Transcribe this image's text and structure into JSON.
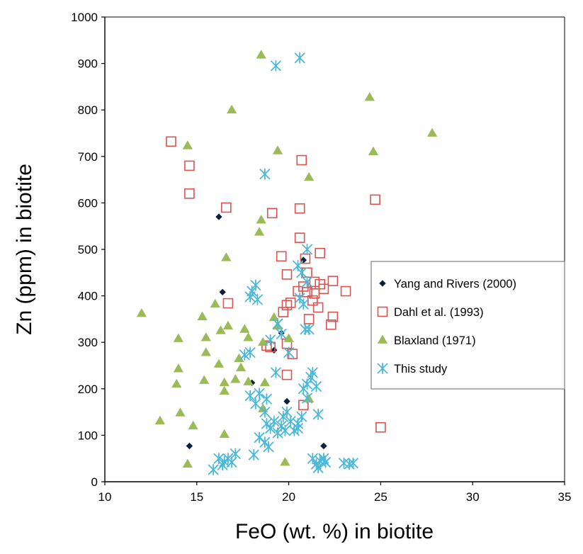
{
  "chart_data": {
    "type": "scatter",
    "title": "",
    "xlabel": "FeO (wt. %) in biotite",
    "ylabel": "Zn (ppm) in biotite",
    "xlim": [
      10,
      35
    ],
    "ylim": [
      0,
      1000
    ],
    "x_ticks": [
      10,
      15,
      20,
      25,
      30,
      35
    ],
    "y_ticks": [
      0,
      100,
      200,
      300,
      400,
      500,
      600,
      700,
      800,
      900,
      1000
    ],
    "grid": false,
    "legend_position": "right",
    "series": [
      {
        "name": "Yang and Rivers (2000)",
        "marker": "diamond",
        "color": "#0b1f3a",
        "points": [
          [
            16.2,
            570
          ],
          [
            16.4,
            408
          ],
          [
            14.6,
            77
          ],
          [
            18.0,
            213
          ],
          [
            19.2,
            283
          ],
          [
            19.6,
            320
          ],
          [
            19.9,
            173
          ],
          [
            20.8,
            477
          ],
          [
            21.9,
            77
          ]
        ]
      },
      {
        "name": "Dahl et al. (1993)",
        "marker": "square-open",
        "color": "#d9534f",
        "points": [
          [
            13.6,
            732
          ],
          [
            14.6,
            680
          ],
          [
            14.6,
            620
          ],
          [
            16.6,
            590
          ],
          [
            16.7,
            384
          ],
          [
            19.1,
            578
          ],
          [
            18.8,
            293
          ],
          [
            19.0,
            290
          ],
          [
            19.7,
            365
          ],
          [
            19.6,
            485
          ],
          [
            19.9,
            446
          ],
          [
            19.9,
            380
          ],
          [
            20.1,
            385
          ],
          [
            19.9,
            297
          ],
          [
            20.2,
            275
          ],
          [
            19.9,
            230
          ],
          [
            20.6,
            588
          ],
          [
            20.6,
            525
          ],
          [
            20.7,
            692
          ],
          [
            20.9,
            480
          ],
          [
            21.0,
            450
          ],
          [
            20.8,
            165
          ],
          [
            20.5,
            410
          ],
          [
            20.8,
            420
          ],
          [
            21.0,
            408
          ],
          [
            21.1,
            350
          ],
          [
            21.4,
            430
          ],
          [
            21.4,
            405
          ],
          [
            21.6,
            375
          ],
          [
            21.7,
            492
          ],
          [
            21.7,
            425
          ],
          [
            21.9,
            415
          ],
          [
            21.3,
            390
          ],
          [
            22.3,
            338
          ],
          [
            22.4,
            355
          ],
          [
            22.4,
            432
          ],
          [
            23.1,
            410
          ],
          [
            24.7,
            607
          ],
          [
            25.0,
            117
          ]
        ]
      },
      {
        "name": "Blaxland (1971)",
        "marker": "triangle",
        "color": "#9bbb59",
        "points": [
          [
            12.0,
            362
          ],
          [
            13.0,
            131
          ],
          [
            13.9,
            210
          ],
          [
            14.0,
            243
          ],
          [
            14.0,
            308
          ],
          [
            14.1,
            148
          ],
          [
            14.5,
            723
          ],
          [
            14.5,
            38
          ],
          [
            14.8,
            120
          ],
          [
            15.3,
            355
          ],
          [
            15.4,
            218
          ],
          [
            15.5,
            310
          ],
          [
            15.5,
            278
          ],
          [
            16.0,
            382
          ],
          [
            16.2,
            253
          ],
          [
            16.3,
            325
          ],
          [
            16.5,
            213
          ],
          [
            16.6,
            482
          ],
          [
            16.7,
            335
          ],
          [
            16.5,
            102
          ],
          [
            16.9,
            800
          ],
          [
            16.5,
            195
          ],
          [
            17.1,
            220
          ],
          [
            17.3,
            265
          ],
          [
            17.4,
            245
          ],
          [
            17.6,
            328
          ],
          [
            17.8,
            310
          ],
          [
            17.8,
            215
          ],
          [
            18.4,
            537
          ],
          [
            18.5,
            563
          ],
          [
            18.5,
            918
          ],
          [
            18.7,
            213
          ],
          [
            18.6,
            300
          ],
          [
            18.6,
            157
          ],
          [
            19.2,
            353
          ],
          [
            19.4,
            712
          ],
          [
            19.4,
            335
          ],
          [
            19.8,
            42
          ],
          [
            20.0,
            308
          ],
          [
            21.1,
            655
          ],
          [
            21.1,
            178
          ],
          [
            24.4,
            827
          ],
          [
            24.6,
            710
          ],
          [
            27.8,
            750
          ]
        ]
      },
      {
        "name": "This study",
        "marker": "asterisk",
        "color": "#4bb8d9",
        "points": [
          [
            19.3,
            895
          ],
          [
            20.6,
            912
          ],
          [
            18.7,
            662
          ],
          [
            21.0,
            500
          ],
          [
            20.5,
            465
          ],
          [
            20.7,
            450
          ],
          [
            21.0,
            430
          ],
          [
            18.0,
            410
          ],
          [
            18.2,
            423
          ],
          [
            17.9,
            398
          ],
          [
            18.3,
            392
          ],
          [
            20.6,
            395
          ],
          [
            20.8,
            382
          ],
          [
            20.9,
            328
          ],
          [
            21.1,
            328
          ],
          [
            19.4,
            340
          ],
          [
            19.6,
            318
          ],
          [
            19.0,
            305
          ],
          [
            17.9,
            278
          ],
          [
            17.6,
            273
          ],
          [
            20.0,
            278
          ],
          [
            17.9,
            185
          ],
          [
            18.4,
            190
          ],
          [
            18.2,
            168
          ],
          [
            18.7,
            150
          ],
          [
            18.8,
            178
          ],
          [
            19.3,
            235
          ],
          [
            19.7,
            140
          ],
          [
            19.9,
            150
          ],
          [
            19.2,
            130
          ],
          [
            19.6,
            120
          ],
          [
            18.8,
            125
          ],
          [
            19.0,
            115
          ],
          [
            19.4,
            105
          ],
          [
            20.1,
            130
          ],
          [
            20.3,
            110
          ],
          [
            20.5,
            125
          ],
          [
            20.5,
            115
          ],
          [
            20.7,
            140
          ],
          [
            19.8,
            110
          ],
          [
            20.8,
            200
          ],
          [
            21.0,
            210
          ],
          [
            21.2,
            225
          ],
          [
            21.3,
            235
          ],
          [
            21.5,
            205
          ],
          [
            21.0,
            180
          ],
          [
            21.6,
            145
          ],
          [
            18.4,
            95
          ],
          [
            18.7,
            85
          ],
          [
            18.9,
            75
          ],
          [
            18.1,
            58
          ],
          [
            15.9,
            26
          ],
          [
            16.2,
            50
          ],
          [
            16.5,
            43
          ],
          [
            16.7,
            50
          ],
          [
            16.9,
            42
          ],
          [
            17.1,
            60
          ],
          [
            16.4,
            36
          ],
          [
            21.3,
            50
          ],
          [
            21.5,
            38
          ],
          [
            21.7,
            45
          ],
          [
            21.9,
            50
          ],
          [
            21.6,
            30
          ],
          [
            22.0,
            42
          ],
          [
            23.0,
            40
          ],
          [
            23.3,
            38
          ],
          [
            23.5,
            40
          ]
        ]
      }
    ]
  }
}
